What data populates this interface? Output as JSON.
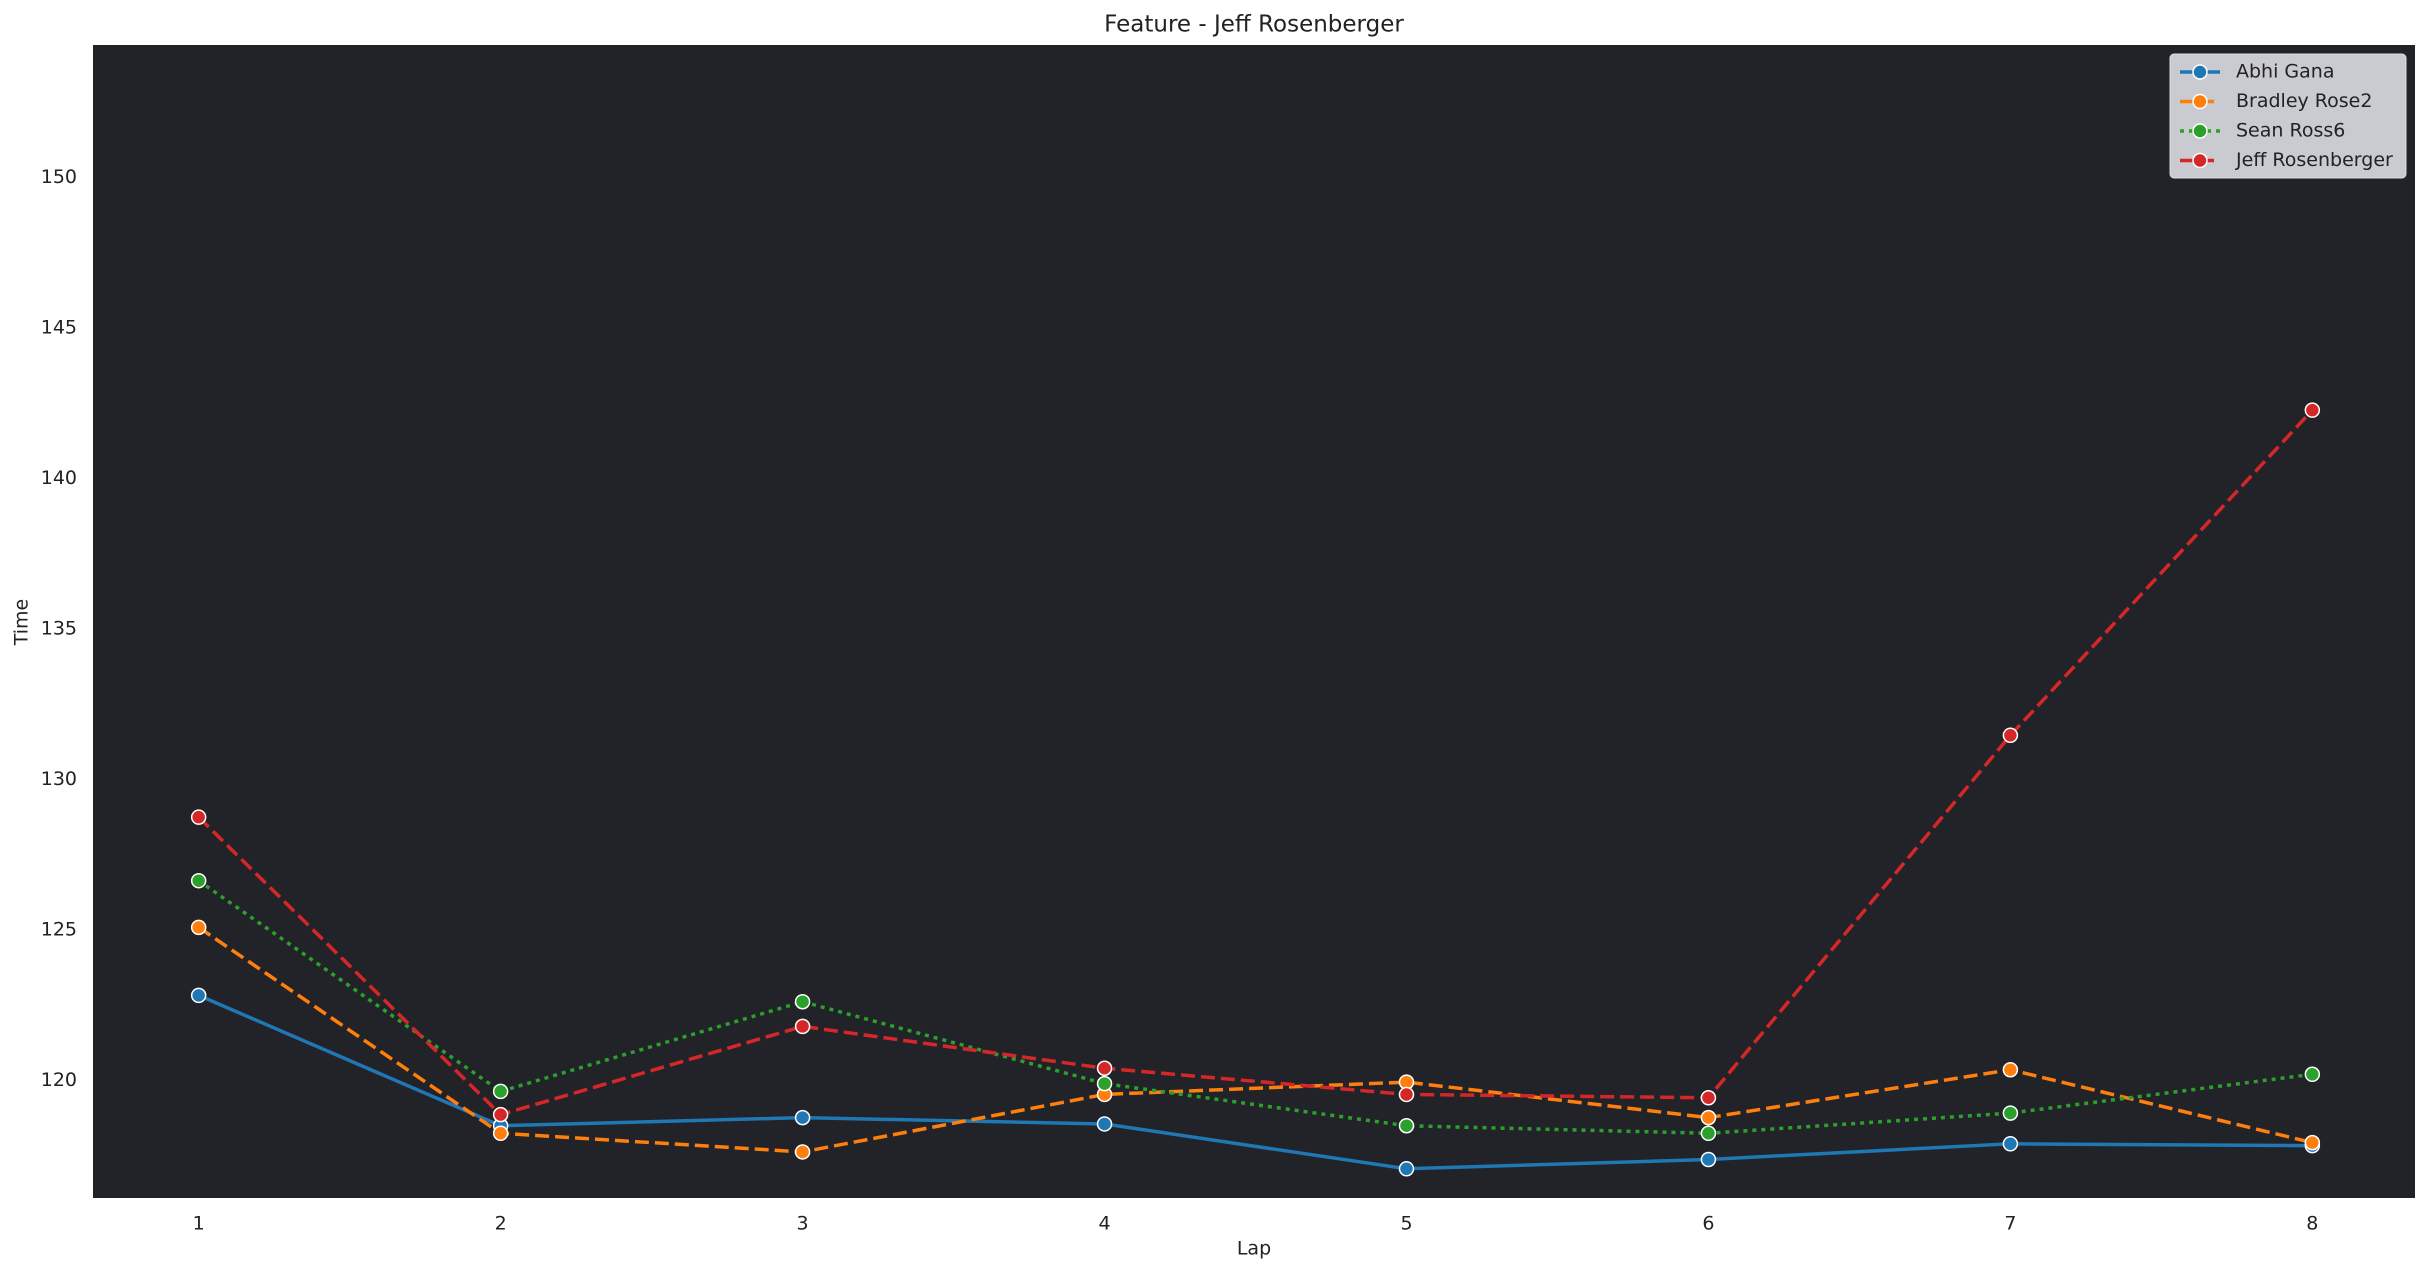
{
  "chart_data": {
    "type": "line",
    "title": "Feature - Jeff Rosenberger",
    "x_label": "Lap",
    "y_label": "Time",
    "x": [
      1,
      2,
      3,
      4,
      5,
      6,
      7,
      8
    ],
    "series": [
      {
        "name": "Abhi Gana",
        "color": "#1f77b4",
        "linestyle": "solid",
        "values": [
          122.83,
          118.5,
          118.77,
          118.56,
          117.07,
          117.38,
          117.9,
          117.84
        ]
      },
      {
        "name": "Bradley Rose2",
        "color": "#ff7f0e",
        "linestyle": "dashed",
        "values": [
          125.09,
          118.25,
          117.63,
          119.54,
          119.95,
          118.77,
          120.36,
          117.94
        ]
      },
      {
        "name": "Sean Ross6",
        "color": "#2ca02c",
        "linestyle": "dotted",
        "values": [
          126.64,
          119.64,
          122.62,
          119.9,
          118.5,
          118.25,
          118.92,
          120.21
        ]
      },
      {
        "name": "Jeff Rosenberger",
        "color": "#d62728",
        "linestyle": "dashed",
        "values": [
          128.75,
          118.87,
          121.8,
          120.41,
          119.54,
          119.43,
          131.47,
          142.27
        ]
      }
    ],
    "xlim": [
      0.65,
      8.34
    ],
    "xticks": [
      1,
      2,
      3,
      4,
      5,
      6,
      7,
      8
    ],
    "ylim": [
      116.1,
      154.4
    ],
    "yticks": [
      120,
      125,
      130,
      135,
      140,
      145,
      150
    ],
    "grid": false,
    "legend": "upper right",
    "background": "#212328"
  }
}
